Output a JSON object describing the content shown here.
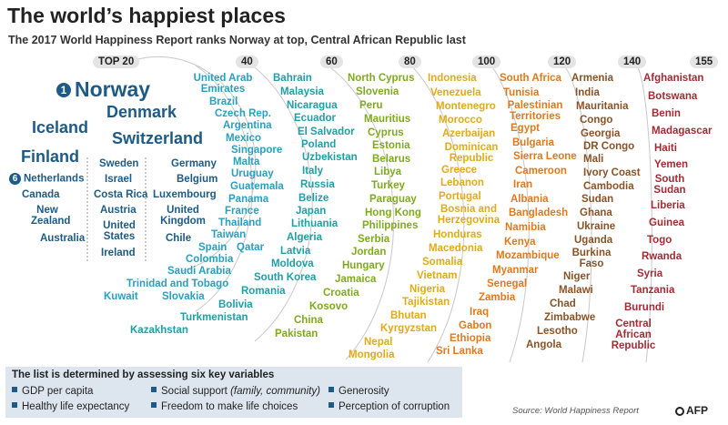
{
  "title": "The world’s happiest places",
  "subtitle": "The 2017 World Happiness Report ranks Norway at top, Central African Republic last",
  "ranks": [
    "TOP 20",
    "40",
    "60",
    "80",
    "100",
    "120",
    "140",
    "155"
  ],
  "top20": {
    "norway_num": "1",
    "norway": "Norway",
    "denmark": "Denmark",
    "iceland": "Iceland",
    "switzerland": "Switzerland",
    "finland": "Finland",
    "netherlands_num": "6",
    "netherlands": "Netherlands",
    "canada": "Canada",
    "new_zealand": "New Zealand",
    "australia": "Australia",
    "sweden": "Sweden",
    "israel": "Israel",
    "costa_rica": "Costa Rica",
    "austria": "Austria",
    "united_states": "United States",
    "ireland": "Ireland",
    "germany": "Germany",
    "belgium": "Belgium",
    "luxembourg": "Luxembourg",
    "united_kingdom": "United Kingdom",
    "chile": "Chile"
  },
  "group40": [
    "United Arab Emirates",
    "Brazil",
    "Czech Rep.",
    "Argentina",
    "Mexico",
    "Singapore",
    "Malta",
    "Uruguay",
    "Guatemala",
    "Panama",
    "France",
    "Thailand",
    "Taiwan",
    "Spain",
    "Qatar",
    "Colombia",
    "Saudi Arabia",
    "Trinidad and Tobago",
    "Kuwait",
    "Slovakia"
  ],
  "group60": [
    "Bahrain",
    "Malaysia",
    "Nicaragua",
    "Ecuador",
    "El Salvador",
    "Poland",
    "Uzbekistan",
    "Italy",
    "Russia",
    "Belize",
    "Japan",
    "Lithuania",
    "Algeria",
    "Latvia",
    "Moldova",
    "South Korea",
    "Romania",
    "Bolivia",
    "Turkmenistan",
    "Kazakhstan"
  ],
  "group80": [
    "North Cyprus",
    "Slovenia",
    "Peru",
    "Mauritius",
    "Cyprus",
    "Estonia",
    "Belarus",
    "Libya",
    "Turkey",
    "Paraguay",
    "Hong Kong",
    "Philippines",
    "Serbia",
    "Jordan",
    "Hungary",
    "Jamaica",
    "Croatia",
    "Kosovo",
    "China",
    "Pakistan"
  ],
  "group100": [
    "Indonesia",
    "Venezuela",
    "Montenegro",
    "Morocco",
    "Azerbaijan",
    "Dominican Republic",
    "Greece",
    "Lebanon",
    "Portugal",
    "Bosnia and Herzegovina",
    "Honduras",
    "Macedonia",
    "Somalia",
    "Vietnam",
    "Nigeria",
    "Tajikistan",
    "Bhutan",
    "Kyrgyzstan",
    "Nepal",
    "Mongolia"
  ],
  "group120": [
    "South Africa",
    "Tunisia",
    "Palestinian Territories",
    "Egypt",
    "Bulgaria",
    "Sierra Leone",
    "Cameroon",
    "Iran",
    "Albania",
    "Bangladesh",
    "Namibia",
    "Kenya",
    "Mozambique",
    "Myanmar",
    "Senegal",
    "Zambia",
    "Iraq",
    "Gabon",
    "Ethiopia",
    "Sri Lanka"
  ],
  "group140": [
    "Armenia",
    "India",
    "Mauritania",
    "Congo",
    "Georgia",
    "DR Congo",
    "Mali",
    "Ivory Coast",
    "Cambodia",
    "Sudan",
    "Ghana",
    "Ukraine",
    "Uganda",
    "Burkina Faso",
    "Niger",
    "Malawi",
    "Chad",
    "Zimbabwe",
    "Lesotho",
    "Angola"
  ],
  "group155": [
    "Afghanistan",
    "Botswana",
    "Benin",
    "Madagascar",
    "Haiti",
    "Yemen",
    "South Sudan",
    "Liberia",
    "Guinea",
    "Togo",
    "Rwanda",
    "Syria",
    "Tanzania",
    "Burundi",
    "Central African Republic"
  ],
  "legend": {
    "title": "The list is determined by assessing six key variables",
    "items": [
      "GDP per capita",
      "Social support",
      "(family, community)",
      "Generosity",
      "Healthy life expectancy",
      "Freedom to make life choices",
      "Perception of corruption"
    ]
  },
  "source": "Source: World Happiness Report",
  "agency": "AFP",
  "colors": {
    "top20": "#1d5b86",
    "group40": "#2a9fc0",
    "group60": "#1e9fa5",
    "group80": "#7eaa1f",
    "group100": "#e0aa18",
    "group120": "#e0791e",
    "group140": "#8a5226",
    "group155": "#a32b34",
    "legend_bg": "#dde6ef"
  }
}
